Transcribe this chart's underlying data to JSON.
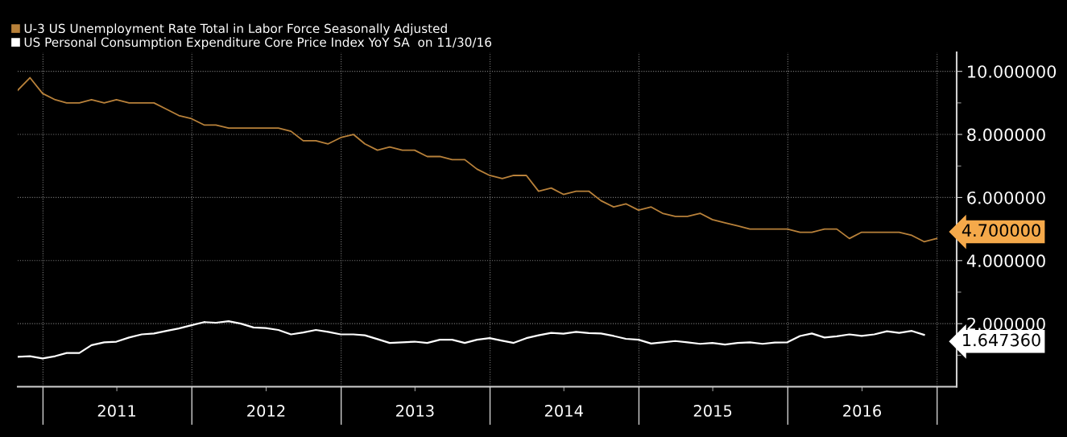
{
  "chart_data": {
    "type": "line",
    "series": [
      {
        "name": "U-3 US Unemployment Rate Total in Labor Force Seasonally Adjusted",
        "color": "#b8813a",
        "x": [
          "2010-10-31",
          "2010-11-30",
          "2010-12-31",
          "2011-01-31",
          "2011-02-28",
          "2011-03-31",
          "2011-04-30",
          "2011-05-31",
          "2011-06-30",
          "2011-07-31",
          "2011-08-31",
          "2011-09-30",
          "2011-10-31",
          "2011-11-30",
          "2011-12-31",
          "2012-01-31",
          "2012-02-29",
          "2012-03-31",
          "2012-04-30",
          "2012-05-31",
          "2012-06-30",
          "2012-07-31",
          "2012-08-31",
          "2012-09-30",
          "2012-10-31",
          "2012-11-30",
          "2012-12-31",
          "2013-01-31",
          "2013-02-28",
          "2013-03-31",
          "2013-04-30",
          "2013-05-31",
          "2013-06-30",
          "2013-07-31",
          "2013-08-31",
          "2013-09-30",
          "2013-10-31",
          "2013-11-30",
          "2013-12-31",
          "2014-01-31",
          "2014-02-28",
          "2014-03-31",
          "2014-04-30",
          "2014-05-31",
          "2014-06-30",
          "2014-07-31",
          "2014-08-31",
          "2014-09-30",
          "2014-10-31",
          "2014-11-30",
          "2014-12-31",
          "2015-01-31",
          "2015-02-28",
          "2015-03-31",
          "2015-04-30",
          "2015-05-31",
          "2015-06-30",
          "2015-07-31",
          "2015-08-31",
          "2015-09-30",
          "2015-10-31",
          "2015-11-30",
          "2015-12-31",
          "2016-01-31",
          "2016-02-29",
          "2016-03-31",
          "2016-04-30",
          "2016-05-31",
          "2016-06-30",
          "2016-07-31",
          "2016-08-31",
          "2016-09-30",
          "2016-10-31",
          "2016-11-30",
          "2016-12-31"
        ],
        "values": [
          9.4,
          9.8,
          9.3,
          9.1,
          9.0,
          9.0,
          9.1,
          9.0,
          9.1,
          9.0,
          9.0,
          9.0,
          8.8,
          8.6,
          8.5,
          8.3,
          8.3,
          8.2,
          8.2,
          8.2,
          8.2,
          8.2,
          8.1,
          7.8,
          7.8,
          7.7,
          7.9,
          8.0,
          7.7,
          7.5,
          7.6,
          7.5,
          7.5,
          7.3,
          7.3,
          7.2,
          7.2,
          6.9,
          6.7,
          6.6,
          6.7,
          6.7,
          6.2,
          6.3,
          6.1,
          6.2,
          6.2,
          5.9,
          5.7,
          5.8,
          5.6,
          5.7,
          5.5,
          5.4,
          5.4,
          5.5,
          5.3,
          5.2,
          5.1,
          5.0,
          5.0,
          5.0,
          5.0,
          4.9,
          4.9,
          5.0,
          5.0,
          4.7,
          4.9,
          4.9,
          4.9,
          4.9,
          4.8,
          4.6,
          4.7
        ]
      },
      {
        "name": "US Personal Consumption Expenditure Core Price Index YoY SA  on 11/30/16",
        "color": "#ffffff",
        "x": [
          "2010-10-31",
          "2010-11-30",
          "2010-12-31",
          "2011-01-31",
          "2011-02-28",
          "2011-03-31",
          "2011-04-30",
          "2011-05-31",
          "2011-06-30",
          "2011-07-31",
          "2011-08-31",
          "2011-09-30",
          "2011-10-31",
          "2011-11-30",
          "2011-12-31",
          "2012-01-31",
          "2012-02-29",
          "2012-03-31",
          "2012-04-30",
          "2012-05-31",
          "2012-06-30",
          "2012-07-31",
          "2012-08-31",
          "2012-09-30",
          "2012-10-31",
          "2012-11-30",
          "2012-12-31",
          "2013-01-31",
          "2013-02-28",
          "2013-03-31",
          "2013-04-30",
          "2013-05-31",
          "2013-06-30",
          "2013-07-31",
          "2013-08-31",
          "2013-09-30",
          "2013-10-31",
          "2013-11-30",
          "2013-12-31",
          "2014-01-31",
          "2014-02-28",
          "2014-03-31",
          "2014-04-30",
          "2014-05-31",
          "2014-06-30",
          "2014-07-31",
          "2014-08-31",
          "2014-09-30",
          "2014-10-31",
          "2014-11-30",
          "2014-12-31",
          "2015-01-31",
          "2015-02-28",
          "2015-03-31",
          "2015-04-30",
          "2015-05-31",
          "2015-06-30",
          "2015-07-31",
          "2015-08-31",
          "2015-09-30",
          "2015-10-31",
          "2015-11-30",
          "2015-12-31",
          "2016-01-31",
          "2016-02-29",
          "2016-03-31",
          "2016-04-30",
          "2016-05-31",
          "2016-06-30",
          "2016-07-31",
          "2016-08-31",
          "2016-09-30",
          "2016-10-31",
          "2016-11-30"
        ],
        "values": [
          0.95,
          0.97,
          0.9,
          0.97,
          1.07,
          1.07,
          1.32,
          1.41,
          1.43,
          1.56,
          1.66,
          1.69,
          1.77,
          1.85,
          1.95,
          2.05,
          2.03,
          2.08,
          2.0,
          1.88,
          1.86,
          1.8,
          1.66,
          1.72,
          1.8,
          1.74,
          1.66,
          1.66,
          1.63,
          1.51,
          1.39,
          1.41,
          1.43,
          1.39,
          1.49,
          1.49,
          1.39,
          1.49,
          1.54,
          1.46,
          1.39,
          1.54,
          1.63,
          1.71,
          1.68,
          1.74,
          1.7,
          1.69,
          1.61,
          1.52,
          1.49,
          1.37,
          1.41,
          1.45,
          1.41,
          1.36,
          1.39,
          1.34,
          1.39,
          1.41,
          1.36,
          1.4,
          1.41,
          1.61,
          1.69,
          1.56,
          1.6,
          1.66,
          1.61,
          1.66,
          1.76,
          1.71,
          1.77,
          1.64736
        ]
      }
    ],
    "xlim": [
      "2010-10-31",
      "2017-02-18"
    ],
    "xticks": [
      {
        "value": "2011-01-01",
        "label": null
      },
      {
        "value": "2011-07-01",
        "label": "2011"
      },
      {
        "value": "2012-01-01",
        "label": null
      },
      {
        "value": "2012-07-01",
        "label": "2012"
      },
      {
        "value": "2013-01-01",
        "label": null
      },
      {
        "value": "2013-07-01",
        "label": "2013"
      },
      {
        "value": "2014-01-01",
        "label": null
      },
      {
        "value": "2014-07-01",
        "label": "2014"
      },
      {
        "value": "2015-01-01",
        "label": null
      },
      {
        "value": "2015-07-01",
        "label": "2015"
      },
      {
        "value": "2016-01-01",
        "label": null
      },
      {
        "value": "2016-07-01",
        "label": "2016"
      },
      {
        "value": "2017-01-01",
        "label": null
      }
    ],
    "ylim": [
      0,
      10.6
    ],
    "yticks": [
      {
        "value": 1,
        "label": null
      },
      {
        "value": 2,
        "label": "2.000000"
      },
      {
        "value": 3,
        "label": null
      },
      {
        "value": 4,
        "label": "4.000000"
      },
      {
        "value": 5,
        "label": null
      },
      {
        "value": 6,
        "label": "6.000000"
      },
      {
        "value": 7,
        "label": null
      },
      {
        "value": 8,
        "label": "8.000000"
      },
      {
        "value": 9,
        "label": null
      },
      {
        "value": 10,
        "label": "10.000000"
      }
    ],
    "annotations": [
      {
        "text": "4.700000",
        "x": "2016-12-31",
        "y": 4.7
      },
      {
        "text": "1.647360",
        "x": "2016-11-30",
        "y": 1.64736
      }
    ],
    "grid": true,
    "legend": "top left",
    "line_style": "solid",
    "marker": "none"
  }
}
